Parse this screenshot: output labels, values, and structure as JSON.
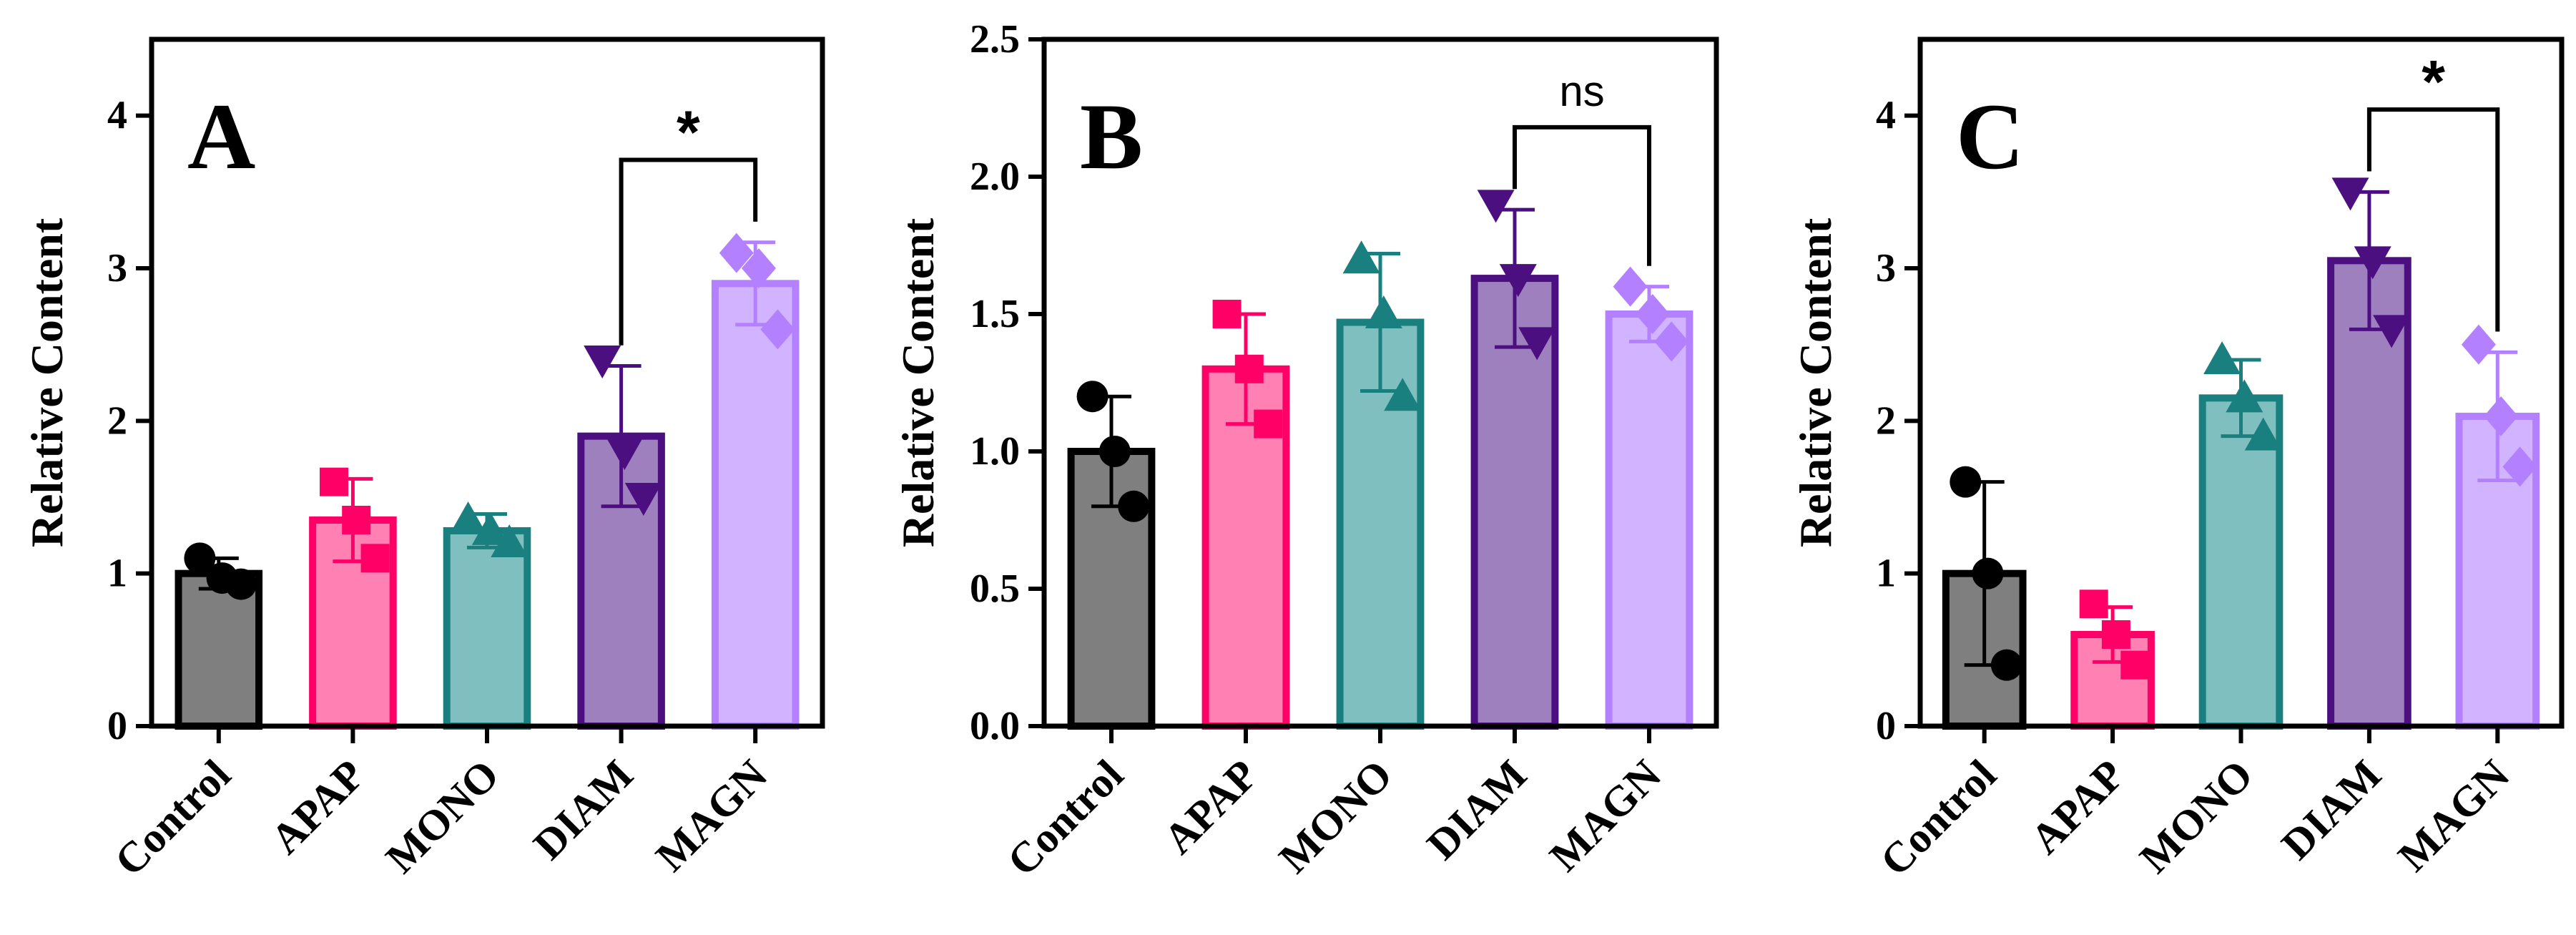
{
  "chart_data": [
    {
      "type": "bar",
      "panel": "A",
      "ylabel": "Relative Content",
      "ylim": [
        0,
        4.5
      ],
      "yticks": [
        0,
        1,
        2,
        3,
        4
      ],
      "ytick_labels": [
        "0",
        "1",
        "2",
        "3",
        "4"
      ],
      "categories": [
        "Control",
        "APAP",
        "MONO",
        "DIAM",
        "MAGN"
      ],
      "values": [
        1.0,
        1.35,
        1.28,
        1.9,
        2.9
      ],
      "error": [
        0.1,
        0.27,
        0.11,
        0.46,
        0.27
      ],
      "points": [
        [
          1.1,
          0.93,
          0.97
        ],
        [
          1.6,
          1.1,
          1.35
        ],
        [
          1.35,
          1.2,
          1.28
        ],
        [
          2.4,
          1.5,
          1.8
        ],
        [
          3.1,
          2.6,
          3.0
        ]
      ],
      "significance": {
        "between": [
          "DIAM",
          "MAGN"
        ],
        "label": "*"
      }
    },
    {
      "type": "bar",
      "panel": "B",
      "ylabel": "Relative Content",
      "ylim": [
        0,
        2.5
      ],
      "yticks": [
        0,
        0.5,
        1,
        1.5,
        2,
        2.5
      ],
      "ytick_labels": [
        "0.0",
        "0.5",
        "1.0",
        "1.5",
        "2.0",
        "2.5"
      ],
      "categories": [
        "Control",
        "APAP",
        "MONO",
        "DIAM",
        "MAGN"
      ],
      "values": [
        1.0,
        1.3,
        1.47,
        1.63,
        1.5
      ],
      "error": [
        0.2,
        0.2,
        0.25,
        0.25,
        0.1
      ],
      "points": [
        [
          1.2,
          0.8,
          1.0
        ],
        [
          1.5,
          1.1,
          1.3
        ],
        [
          1.7,
          1.2,
          1.5
        ],
        [
          1.9,
          1.4,
          1.63
        ],
        [
          1.6,
          1.4,
          1.5
        ]
      ],
      "significance": {
        "between": [
          "DIAM",
          "MAGN"
        ],
        "label": "ns"
      }
    },
    {
      "type": "bar",
      "panel": "C",
      "ylabel": "Relative Content",
      "ylim": [
        0,
        4.5
      ],
      "yticks": [
        0,
        1,
        2,
        3,
        4
      ],
      "ytick_labels": [
        "0",
        "1",
        "2",
        "3",
        "4"
      ],
      "categories": [
        "Control",
        "APAP",
        "MONO",
        "DIAM",
        "MAGN"
      ],
      "values": [
        1.0,
        0.6,
        2.15,
        3.05,
        2.03
      ],
      "error": [
        0.6,
        0.18,
        0.25,
        0.45,
        0.42
      ],
      "points": [
        [
          1.6,
          0.4,
          1.0
        ],
        [
          0.8,
          0.4,
          0.6
        ],
        [
          2.4,
          1.9,
          2.15
        ],
        [
          3.5,
          2.6,
          3.05
        ],
        [
          2.5,
          1.7,
          2.03
        ]
      ],
      "significance": {
        "between": [
          "DIAM",
          "MAGN"
        ],
        "label": "*"
      }
    }
  ],
  "style": {
    "bar_fill": [
      "#7f7f7f",
      "#ff80b3",
      "#80bfbf",
      "#9f80bf",
      "#d1b3ff"
    ],
    "bar_stroke": [
      "#000000",
      "#ff0066",
      "#1a7f7f",
      "#4b0f80",
      "#b380ff"
    ],
    "markers": [
      "circle",
      "square",
      "triangle-up",
      "triangle-down",
      "diamond"
    ]
  }
}
